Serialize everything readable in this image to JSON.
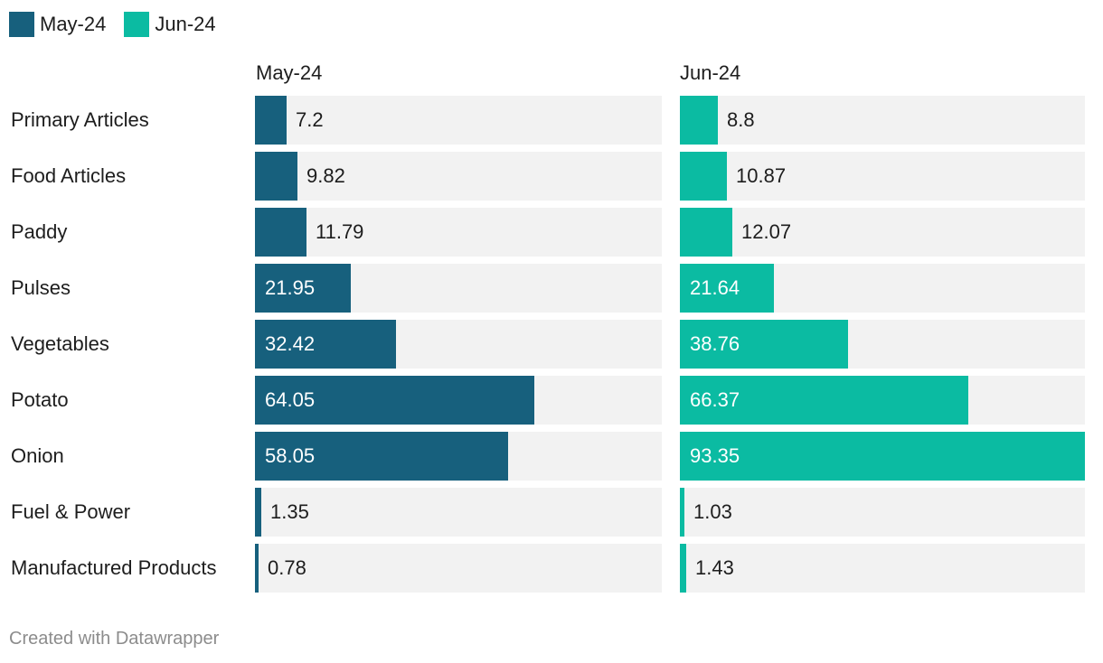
{
  "chart_data": {
    "type": "bar",
    "orientation": "horizontal",
    "layout": "small-multiples",
    "categories": [
      "Primary Articles",
      "Food Articles",
      "Paddy",
      "Pulses",
      "Vegetables",
      "Potato",
      "Onion",
      "Fuel & Power",
      "Manufactured Products"
    ],
    "series": [
      {
        "name": "May-24",
        "color": "#17607d",
        "values": [
          7.2,
          9.82,
          11.79,
          21.95,
          32.42,
          64.05,
          58.05,
          1.35,
          0.78
        ]
      },
      {
        "name": "Jun-24",
        "color": "#0bbba2",
        "values": [
          8.8,
          10.87,
          12.07,
          21.64,
          38.76,
          66.37,
          93.35,
          1.03,
          1.43
        ]
      }
    ],
    "value_labels": {
      "May-24": [
        "7.2",
        "9.82",
        "11.79",
        "21.95",
        "32.42",
        "64.05",
        "58.05",
        "1.35",
        "0.78"
      ],
      "Jun-24": [
        "8.8",
        "10.87",
        "12.07",
        "21.64",
        "38.76",
        "66.37",
        "93.35",
        "1.03",
        "1.43"
      ]
    },
    "xlim": [
      0,
      93.35
    ],
    "legend_position": "top-left",
    "credit": "Created with Datawrapper"
  }
}
